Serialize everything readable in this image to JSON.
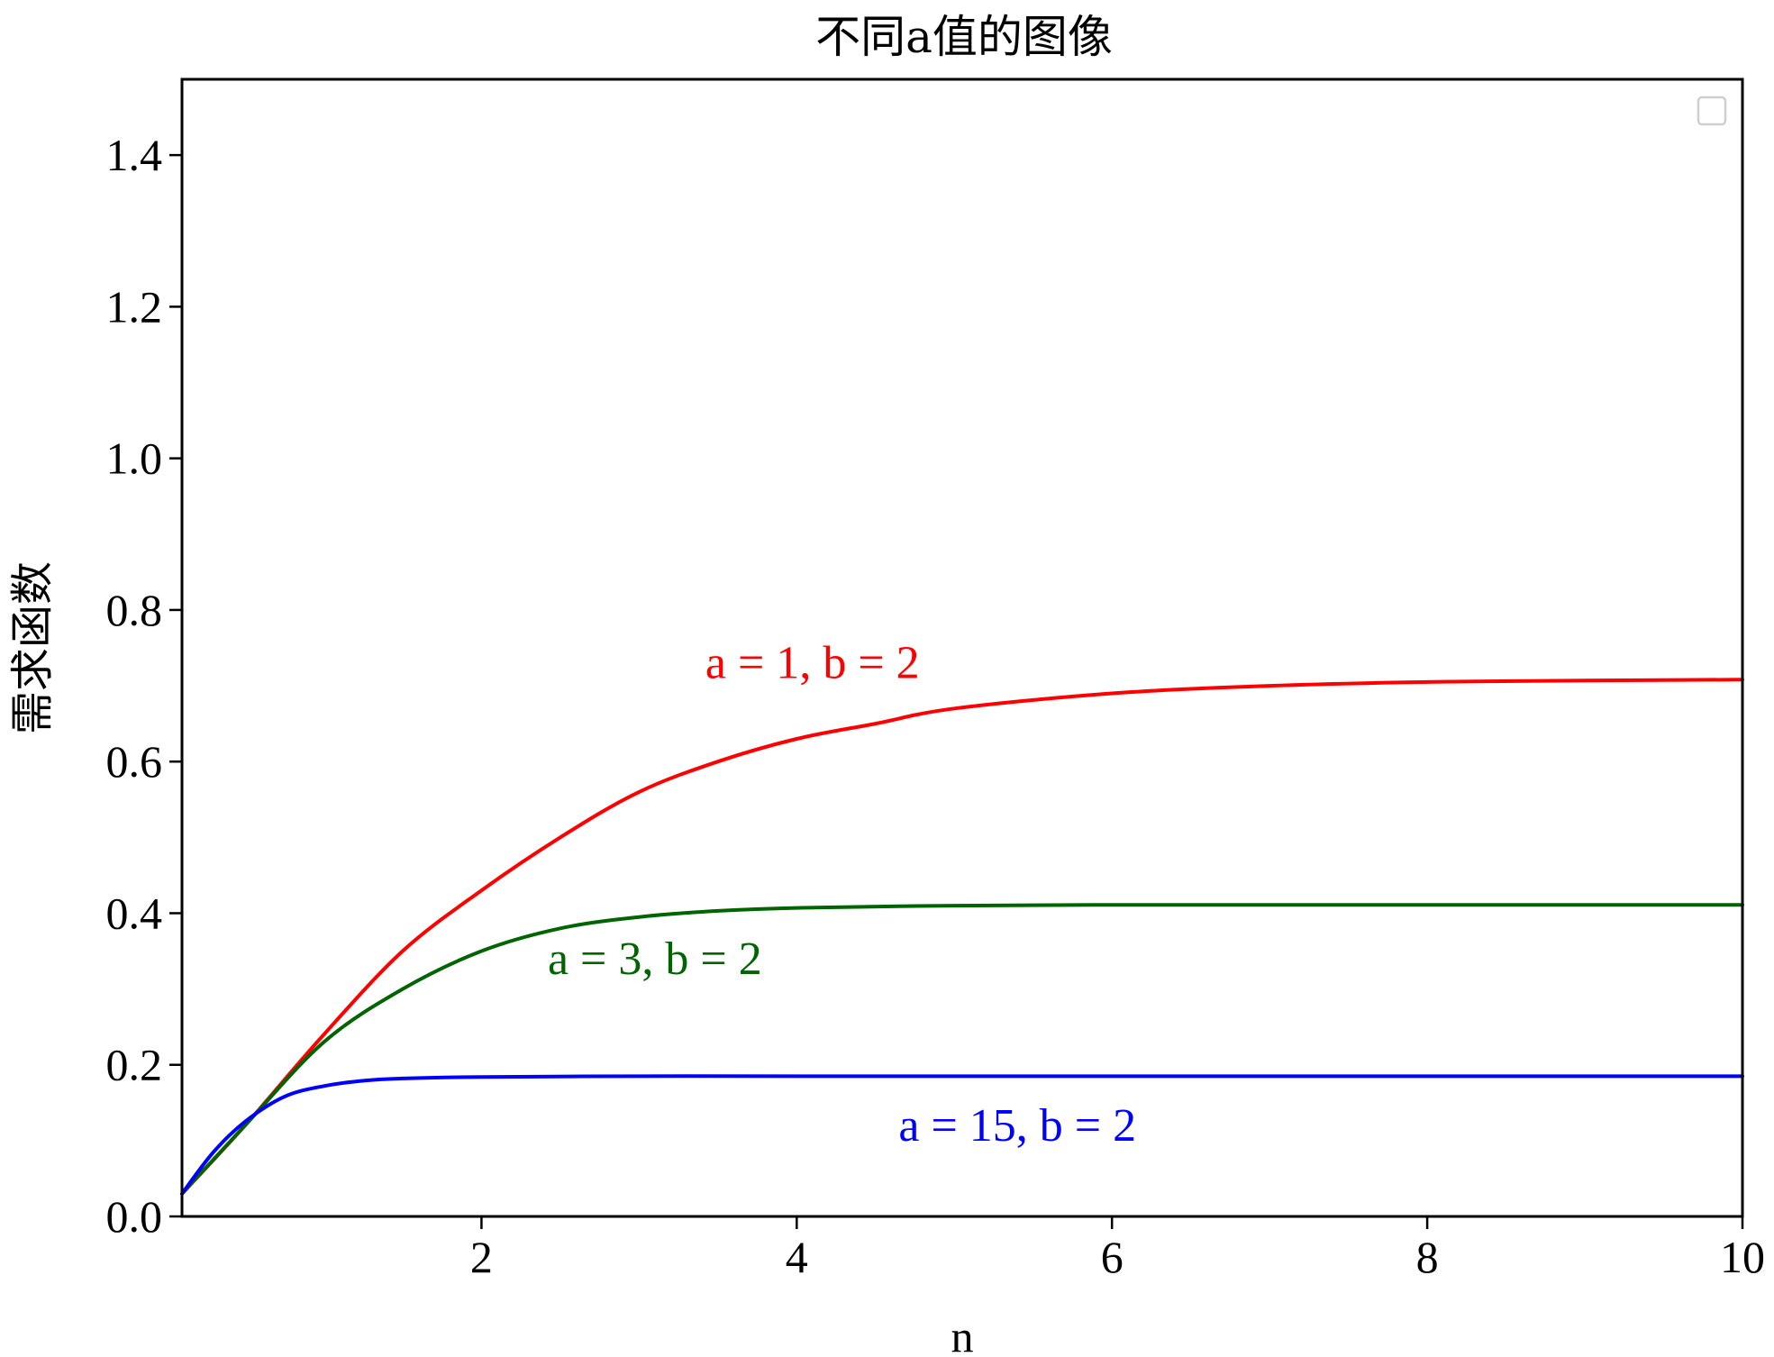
{
  "chart_data": {
    "type": "line",
    "title": "不同a值的图像",
    "xlabel": "n",
    "ylabel": "需求函数",
    "xlim": [
      0.1,
      10
    ],
    "ylim": [
      0.0,
      1.5
    ],
    "x_ticks": [
      2,
      4,
      6,
      8,
      10
    ],
    "x_tick_labels": [
      "2",
      "4",
      "6",
      "8",
      "10"
    ],
    "y_ticks": [
      0.0,
      0.2,
      0.4,
      0.6,
      0.8,
      1.0,
      1.2,
      1.4
    ],
    "y_tick_labels": [
      "0.0",
      "0.2",
      "0.4",
      "0.6",
      "0.8",
      "1.0",
      "1.2",
      "1.4"
    ],
    "grid": false,
    "legend": "top-right (empty)",
    "annotations": [
      {
        "text": "a = 1, b = 2",
        "x": 4.1,
        "y": 0.71,
        "color": "#ff0000"
      },
      {
        "text": "a = 3, b = 2",
        "x": 3.1,
        "y": 0.32,
        "color": "#006400"
      },
      {
        "text": "a = 15, b = 2",
        "x": 5.4,
        "y": 0.1,
        "color": "#0000ff"
      }
    ],
    "series": [
      {
        "color": "#ff0000",
        "x": [
          0.1,
          0.5,
          1.0,
          1.5,
          2.0,
          2.5,
          3.0,
          3.5,
          4.0,
          4.5,
          5.0,
          6.0,
          7.0,
          8.0,
          9.0,
          10.0
        ],
        "y": [
          0.03,
          0.12,
          0.24,
          0.35,
          0.43,
          0.5,
          0.56,
          0.6,
          0.63,
          0.65,
          0.67,
          0.69,
          0.7,
          0.705,
          0.707,
          0.708
        ]
      },
      {
        "color": "#006400",
        "x": [
          0.1,
          0.5,
          1.0,
          1.5,
          2.0,
          2.5,
          3.0,
          3.5,
          4.0,
          5.0,
          6.0,
          7.0,
          8.0,
          9.0,
          10.0
        ],
        "y": [
          0.03,
          0.12,
          0.23,
          0.3,
          0.35,
          0.38,
          0.395,
          0.403,
          0.407,
          0.41,
          0.411,
          0.411,
          0.411,
          0.411,
          0.411
        ]
      },
      {
        "color": "#0000ff",
        "x": [
          0.1,
          0.3,
          0.5,
          0.75,
          1.0,
          1.25,
          1.5,
          2.0,
          3.0,
          4.0,
          6.0,
          8.0,
          10.0
        ],
        "y": [
          0.03,
          0.085,
          0.125,
          0.158,
          0.172,
          0.179,
          0.182,
          0.184,
          0.185,
          0.185,
          0.185,
          0.185,
          0.185
        ]
      }
    ]
  }
}
